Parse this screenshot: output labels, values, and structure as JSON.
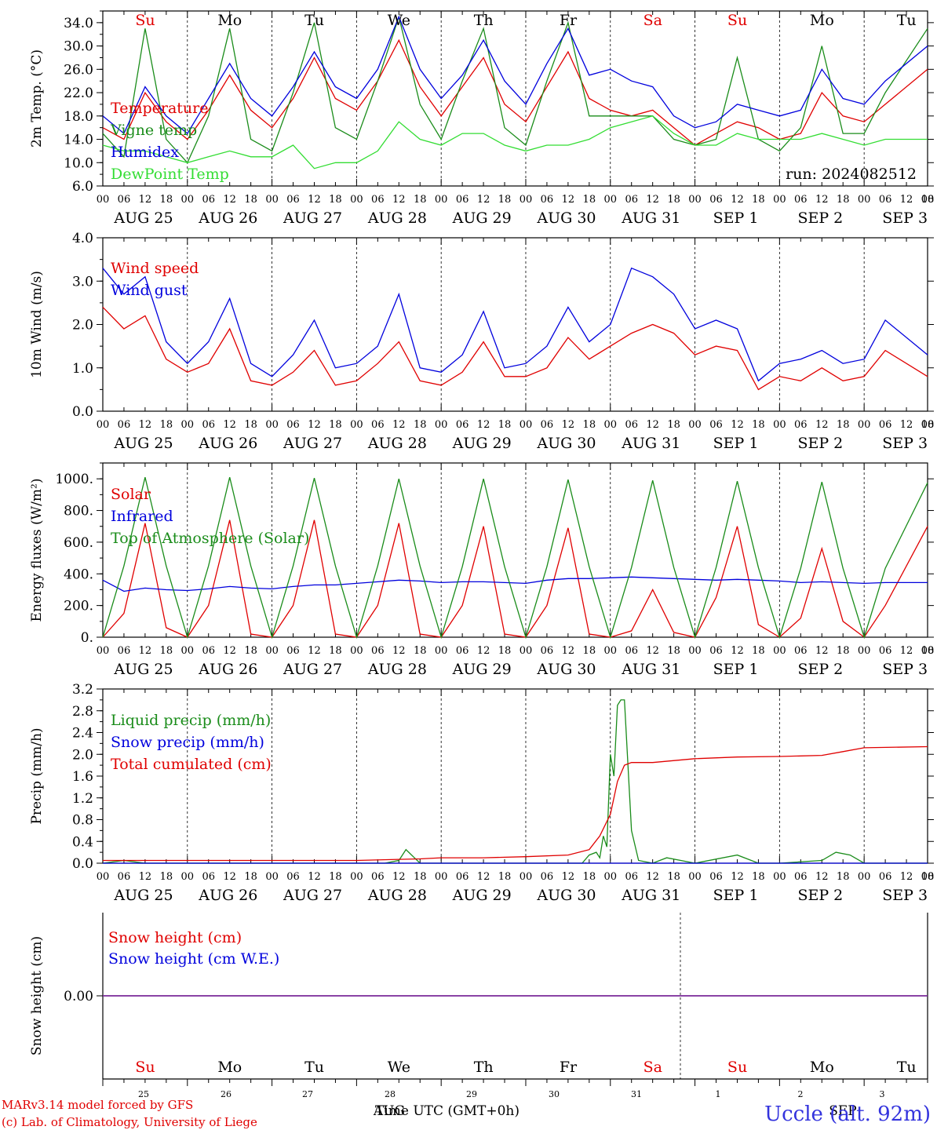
{
  "colors": {
    "red": "#e00000",
    "green": "#1a8c1a",
    "blue": "#0000dd",
    "lightgreen": "#33dd33",
    "purple": "#7a2a9a"
  },
  "run_label": "run: 2024082512",
  "footer": {
    "model": "MARv3.14 model forced by GFS",
    "lab": "(c) Lab. of Climatology, University of Liege",
    "station": "Uccle (alt. 92m)",
    "time_label": "Time UTC (GMT+0h)",
    "aug": "AUG",
    "sep": "SEP"
  },
  "hour_ticks": [
    "00",
    "06",
    "12",
    "18"
  ],
  "date_labels": [
    "AUG 25",
    "AUG 26",
    "AUG 27",
    "AUG 28",
    "AUG 29",
    "AUG 30",
    "AUG 31",
    "SEP  1",
    "SEP  2",
    "SEP  3"
  ],
  "day_numbers": [
    "25",
    "26",
    "27",
    "28",
    "29",
    "30",
    "31",
    "1",
    "2",
    "3"
  ],
  "weekdays": [
    {
      "label": "Su",
      "weekend": true
    },
    {
      "label": "Mo",
      "weekend": false
    },
    {
      "label": "Tu",
      "weekend": false
    },
    {
      "label": "We",
      "weekend": false
    },
    {
      "label": "Th",
      "weekend": false
    },
    {
      "label": "Fr",
      "weekend": false
    },
    {
      "label": "Sa",
      "weekend": true
    },
    {
      "label": "Su",
      "weekend": true
    },
    {
      "label": "Mo",
      "weekend": false
    },
    {
      "label": "Tu",
      "weekend": false
    }
  ],
  "chart_data": [
    {
      "type": "line",
      "ylabel": "2m Temp. (°C)",
      "ylim": [
        6,
        36
      ],
      "yticks": [
        "6.0",
        "10.0",
        "14.0",
        "18.0",
        "22.0",
        "26.0",
        "30.0",
        "34.0"
      ],
      "yvalues": [
        6,
        10,
        14,
        18,
        22,
        26,
        30,
        34
      ],
      "x_unit": "hours since AUG 25 00 UTC",
      "series": [
        {
          "name": "Temperature",
          "color": "red",
          "x": [
            0,
            6,
            12,
            18,
            24,
            30,
            36,
            42,
            48,
            54,
            60,
            66,
            72,
            78,
            84,
            90,
            96,
            102,
            108,
            114,
            120,
            126,
            132,
            138,
            144,
            150,
            156,
            162,
            168,
            174,
            180,
            186,
            192,
            198,
            204,
            210,
            216,
            222,
            234
          ],
          "y": [
            16,
            14,
            22,
            17,
            14,
            19,
            25,
            19,
            16,
            21,
            28,
            21,
            19,
            24,
            31,
            23,
            18,
            23,
            28,
            20,
            17,
            23,
            29,
            21,
            19,
            18,
            19,
            16,
            13,
            15,
            17,
            16,
            14,
            15,
            22,
            18,
            17,
            20,
            26
          ]
        },
        {
          "name": "Vigne temp",
          "color": "green",
          "x": [
            0,
            6,
            12,
            18,
            24,
            30,
            36,
            42,
            48,
            54,
            60,
            66,
            72,
            78,
            84,
            90,
            96,
            102,
            108,
            114,
            120,
            126,
            132,
            138,
            144,
            150,
            156,
            162,
            168,
            174,
            180,
            186,
            192,
            198,
            204,
            210,
            216,
            222,
            234
          ],
          "y": [
            15,
            11,
            33,
            14,
            10,
            18,
            33,
            14,
            12,
            22,
            34,
            16,
            14,
            24,
            35,
            20,
            14,
            24,
            33,
            16,
            13,
            24,
            34,
            18,
            18,
            18,
            18,
            14,
            13,
            14,
            28,
            14,
            12,
            16,
            30,
            15,
            15,
            22,
            33
          ]
        },
        {
          "name": "Humidex",
          "color": "blue",
          "x": [
            0,
            6,
            12,
            18,
            24,
            30,
            36,
            42,
            48,
            54,
            60,
            66,
            72,
            78,
            84,
            90,
            96,
            102,
            108,
            114,
            120,
            126,
            132,
            138,
            144,
            150,
            156,
            162,
            168,
            174,
            180,
            186,
            192,
            198,
            204,
            210,
            216,
            222,
            234
          ],
          "y": [
            18,
            15,
            23,
            18,
            15,
            21,
            27,
            21,
            18,
            23,
            29,
            23,
            21,
            26,
            35,
            26,
            21,
            25,
            31,
            24,
            20,
            27,
            33,
            25,
            26,
            24,
            23,
            18,
            16,
            17,
            20,
            19,
            18,
            19,
            26,
            21,
            20,
            24,
            30
          ]
        },
        {
          "name": "DewPoint Temp",
          "color": "lightgreen",
          "x": [
            0,
            6,
            12,
            18,
            24,
            30,
            36,
            42,
            48,
            54,
            60,
            66,
            72,
            78,
            84,
            90,
            96,
            102,
            108,
            114,
            120,
            126,
            132,
            138,
            144,
            150,
            156,
            162,
            168,
            174,
            180,
            186,
            192,
            198,
            204,
            210,
            216,
            222,
            234
          ],
          "y": [
            13,
            12,
            12,
            11,
            10,
            11,
            12,
            11,
            11,
            13,
            9,
            10,
            10,
            12,
            17,
            14,
            13,
            15,
            15,
            13,
            12,
            13,
            13,
            14,
            16,
            17,
            18,
            15,
            13,
            13,
            15,
            14,
            14,
            14,
            15,
            14,
            13,
            14,
            14
          ]
        }
      ]
    },
    {
      "type": "line",
      "ylabel": "10m Wind (m/s)",
      "ylim": [
        0,
        4
      ],
      "yticks": [
        "0.0",
        "1.0",
        "2.0",
        "3.0",
        "4.0"
      ],
      "yvalues": [
        0,
        1,
        2,
        3,
        4
      ],
      "x_unit": "hours since AUG 25 00 UTC",
      "series": [
        {
          "name": "Wind speed",
          "color": "red",
          "x": [
            0,
            6,
            12,
            18,
            24,
            30,
            36,
            42,
            48,
            54,
            60,
            66,
            72,
            78,
            84,
            90,
            96,
            102,
            108,
            114,
            120,
            126,
            132,
            138,
            144,
            150,
            156,
            162,
            168,
            174,
            180,
            186,
            192,
            198,
            204,
            210,
            216,
            222,
            234
          ],
          "y": [
            2.4,
            1.9,
            2.2,
            1.2,
            0.9,
            1.1,
            1.9,
            0.7,
            0.6,
            0.9,
            1.4,
            0.6,
            0.7,
            1.1,
            1.6,
            0.7,
            0.6,
            0.9,
            1.6,
            0.8,
            0.8,
            1.0,
            1.7,
            1.2,
            1.5,
            1.8,
            2.0,
            1.8,
            1.3,
            1.5,
            1.4,
            0.5,
            0.8,
            0.7,
            1.0,
            0.7,
            0.8,
            1.4,
            0.8
          ]
        },
        {
          "name": "Wind gust",
          "color": "blue",
          "x": [
            0,
            6,
            12,
            18,
            24,
            30,
            36,
            42,
            48,
            54,
            60,
            66,
            72,
            78,
            84,
            90,
            96,
            102,
            108,
            114,
            120,
            126,
            132,
            138,
            144,
            150,
            156,
            162,
            168,
            174,
            180,
            186,
            192,
            198,
            204,
            210,
            216,
            222,
            234
          ],
          "y": [
            3.3,
            2.7,
            3.1,
            1.6,
            1.1,
            1.6,
            2.6,
            1.1,
            0.8,
            1.3,
            2.1,
            1.0,
            1.1,
            1.5,
            2.7,
            1.0,
            0.9,
            1.3,
            2.3,
            1.0,
            1.1,
            1.5,
            2.4,
            1.6,
            2.0,
            3.3,
            3.1,
            2.7,
            1.9,
            2.1,
            1.9,
            0.7,
            1.1,
            1.2,
            1.4,
            1.1,
            1.2,
            2.1,
            1.3
          ]
        }
      ]
    },
    {
      "type": "line",
      "ylabel": "Energy fluxes (W/m²)",
      "ylim": [
        0,
        1100
      ],
      "yticks": [
        "0.",
        "200.",
        "400.",
        "600.",
        "800.",
        "1000."
      ],
      "yvalues": [
        0,
        200,
        400,
        600,
        800,
        1000
      ],
      "x_unit": "hours since AUG 25 00 UTC",
      "series": [
        {
          "name": "Solar",
          "color": "red",
          "x": [
            0,
            6,
            12,
            18,
            24,
            30,
            36,
            42,
            48,
            54,
            60,
            66,
            72,
            78,
            84,
            90,
            96,
            102,
            108,
            114,
            120,
            126,
            132,
            138,
            144,
            150,
            156,
            162,
            168,
            174,
            180,
            186,
            192,
            198,
            204,
            210,
            216,
            222,
            234
          ],
          "y": [
            0,
            150,
            720,
            60,
            0,
            200,
            740,
            20,
            0,
            200,
            740,
            20,
            0,
            200,
            720,
            20,
            0,
            200,
            700,
            20,
            0,
            200,
            690,
            20,
            0,
            40,
            300,
            30,
            0,
            250,
            700,
            80,
            0,
            120,
            560,
            100,
            0,
            200,
            700
          ]
        },
        {
          "name": "Infrared",
          "color": "blue",
          "x": [
            0,
            6,
            12,
            18,
            24,
            30,
            36,
            42,
            48,
            54,
            60,
            66,
            72,
            78,
            84,
            90,
            96,
            102,
            108,
            114,
            120,
            126,
            132,
            138,
            144,
            150,
            156,
            162,
            168,
            174,
            180,
            186,
            192,
            198,
            204,
            210,
            216,
            222,
            234
          ],
          "y": [
            360,
            290,
            310,
            300,
            295,
            305,
            320,
            310,
            305,
            320,
            330,
            330,
            340,
            350,
            360,
            355,
            345,
            350,
            350,
            345,
            340,
            360,
            370,
            370,
            375,
            380,
            375,
            370,
            365,
            360,
            365,
            360,
            355,
            345,
            350,
            345,
            340,
            345,
            345
          ]
        },
        {
          "name": "Top of Atmosphere (Solar)",
          "color": "green",
          "x": [
            0,
            6,
            12,
            18,
            24,
            30,
            36,
            42,
            48,
            54,
            60,
            66,
            72,
            78,
            84,
            90,
            96,
            102,
            108,
            114,
            120,
            126,
            132,
            138,
            144,
            150,
            156,
            162,
            168,
            174,
            180,
            186,
            192,
            198,
            204,
            210,
            216,
            222,
            234
          ],
          "y": [
            0,
            450,
            1010,
            450,
            0,
            450,
            1010,
            450,
            0,
            450,
            1005,
            450,
            0,
            450,
            1000,
            450,
            0,
            445,
            1000,
            445,
            0,
            445,
            995,
            445,
            0,
            440,
            990,
            440,
            0,
            440,
            985,
            440,
            0,
            435,
            980,
            435,
            0,
            435,
            975
          ]
        }
      ]
    },
    {
      "type": "line",
      "ylabel": "Precip (mm/h)",
      "ylim": [
        0,
        3.2
      ],
      "yticks": [
        "0.0",
        "0.4",
        "0.8",
        "1.2",
        "1.6",
        "2.0",
        "2.4",
        "2.8",
        "3.2"
      ],
      "yvalues": [
        0,
        0.4,
        0.8,
        1.2,
        1.6,
        2.0,
        2.4,
        2.8,
        3.2
      ],
      "x_unit": "hours since AUG 25 00 UTC",
      "series": [
        {
          "name": "Liquid precip (mm/h)",
          "color": "green",
          "x": [
            0,
            6,
            12,
            72,
            80,
            84,
            86,
            90,
            96,
            120,
            136,
            138,
            140,
            141,
            142,
            143,
            144,
            145,
            146,
            147,
            148,
            150,
            152,
            156,
            160,
            168,
            180,
            186,
            192,
            204,
            208,
            212,
            216,
            234
          ],
          "y": [
            0,
            0.05,
            0,
            0,
            0,
            0.05,
            0.25,
            0,
            0,
            0,
            0,
            0.15,
            0.2,
            0.1,
            0.5,
            0.3,
            2.0,
            1.6,
            2.9,
            3.0,
            3.0,
            0.6,
            0.05,
            0,
            0.1,
            0,
            0.15,
            0,
            0,
            0.05,
            0.2,
            0.15,
            0,
            0
          ]
        },
        {
          "name": "Snow precip (mm/h)",
          "color": "blue",
          "x": [
            0,
            234
          ],
          "y": [
            0,
            0
          ]
        },
        {
          "name": "Total cumulated (cm)",
          "color": "red",
          "x": [
            0,
            6,
            72,
            84,
            90,
            96,
            108,
            120,
            132,
            138,
            141,
            144,
            146,
            148,
            150,
            156,
            168,
            180,
            192,
            204,
            210,
            216,
            234
          ],
          "y": [
            0.05,
            0.05,
            0.05,
            0.07,
            0.08,
            0.1,
            0.1,
            0.12,
            0.15,
            0.25,
            0.5,
            0.9,
            1.5,
            1.8,
            1.85,
            1.85,
            1.92,
            1.95,
            1.96,
            1.98,
            2.05,
            2.12,
            2.14
          ]
        }
      ]
    },
    {
      "type": "line",
      "ylabel": "Snow height (cm)",
      "ylim": [
        -1,
        1
      ],
      "yticks": [
        "0.00"
      ],
      "yvalues": [
        0
      ],
      "x_unit": "hours since AUG 25 00 UTC",
      "series": [
        {
          "name": "Snow height (cm)",
          "color": "red",
          "x": [
            0,
            234
          ],
          "y": [
            0,
            0
          ]
        },
        {
          "name": "Snow height (cm W.E.)",
          "color": "blue",
          "x": [
            0,
            234
          ],
          "y": [
            0,
            0
          ]
        }
      ]
    }
  ]
}
